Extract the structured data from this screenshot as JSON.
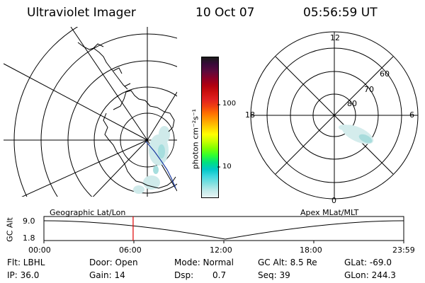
{
  "header": {
    "instrument": "Ultraviolet Imager",
    "date": "10 Oct 07",
    "time": "05:56:59 UT"
  },
  "colorbar": {
    "label": "photon cm⁻²s⁻¹",
    "ticks": [
      "100",
      "10"
    ],
    "colors": [
      "#1a1a1a",
      "#3a0a3a",
      "#5c0a3c",
      "#8a0028",
      "#b00010",
      "#cc1010",
      "#e02020",
      "#f04010",
      "#ff7000",
      "#ffa000",
      "#ffd000",
      "#ffff00",
      "#c8ff00",
      "#80ff00",
      "#30ff30",
      "#00e080",
      "#00c8c8",
      "#40d8e0",
      "#80e0e0",
      "#c0eaea",
      "#e8f4f4"
    ]
  },
  "geo_map": {
    "label": "Geographic Lat/Lon"
  },
  "apex_map": {
    "label": "Apex MLat/MLT",
    "mlt_labels": {
      "top": "12",
      "left": "18",
      "right": "6",
      "bottom": "0"
    },
    "lat_labels": [
      "60",
      "70",
      "80"
    ]
  },
  "timeline": {
    "axis_label": "GC Alt",
    "y_ticks": [
      "9.0",
      "1.8"
    ],
    "x_ticks": [
      "00:00",
      "06:00",
      "12:00",
      "18:00",
      "23:59"
    ],
    "current_marker_fraction": 0.2479
  },
  "info": {
    "flt": "Flt: LBHL",
    "ip": "IP: 36.0",
    "door": "Door: Open",
    "gain": "Gain: 14",
    "mode": "Mode: Normal",
    "dsp_label": "Dsp:",
    "dsp_value": "0.7",
    "gc_alt": "GC Alt: 8.5 Re",
    "seq": "Seq: 39",
    "glat": "GLat: -69.0",
    "glon": "GLon: 244.3"
  }
}
